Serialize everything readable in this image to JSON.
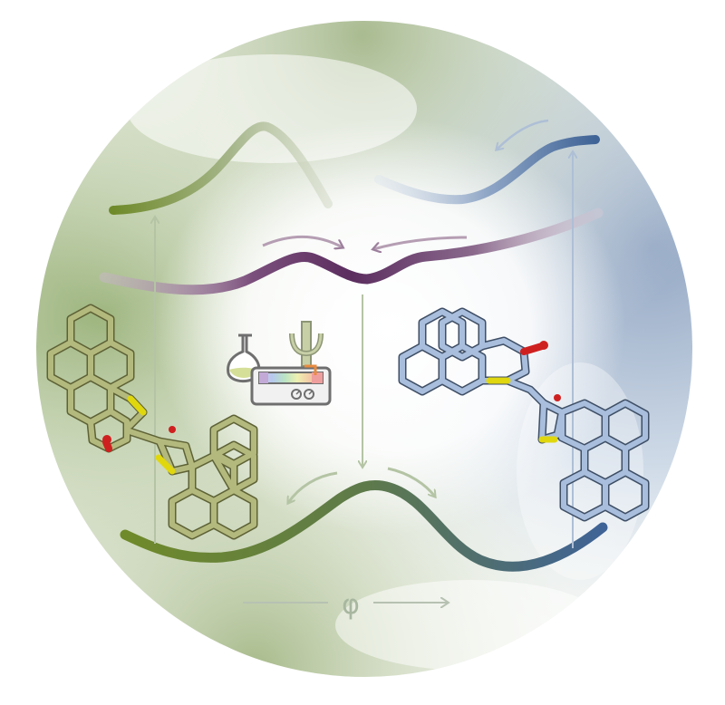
{
  "diagram": {
    "axis_symbol": "φ",
    "icons": {
      "flask": "flask-icon",
      "spectrometer": "spectrometer-icon",
      "psi": "psi-icon"
    },
    "colors": {
      "green": "#7d933f",
      "green_light": "#9aaa72",
      "purple": "#6c3f6f",
      "purple_light": "#b99bb7",
      "blue": "#4f6f9c",
      "blue_light": "#8ea8cf",
      "mol_green": "#b3b97d",
      "mol_blue": "#a8bedc",
      "oxygen": "#cf2020",
      "sulfur": "#e0d70f",
      "arrow_green": "#b4c4a4",
      "arrow_blue": "#aebfd6"
    },
    "molecules": [
      {
        "name": "molecule-green",
        "description_icon": "molecule-green-icon"
      },
      {
        "name": "molecule-blue",
        "description_icon": "molecule-blue-icon"
      }
    ]
  }
}
